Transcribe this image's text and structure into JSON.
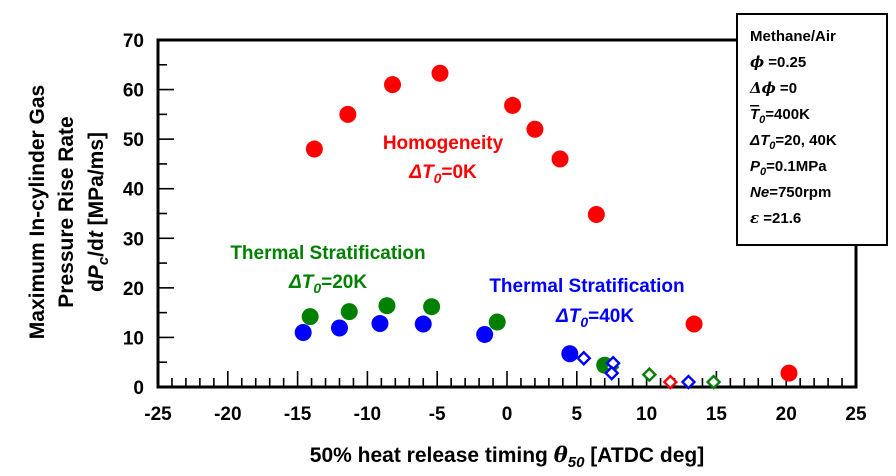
{
  "chart_data": {
    "type": "scatter",
    "xlabel_main": "50% heat release timing ",
    "xlabel_symbol": "θ",
    "xlabel_sub": "50",
    "xlabel_unit": " [ATDC deg]",
    "ylabel_line1": "Maximum In-cylinder Gas",
    "ylabel_line2": "Pressure Rise Rate",
    "ylabel_line3_d": "d",
    "ylabel_line3_p": "P",
    "ylabel_line3_c": "c",
    "ylabel_line3_slash": "/d",
    "ylabel_line3_t": "t",
    "ylabel_line3_unit": " [MPa/ms]",
    "xlim": [
      -25,
      25
    ],
    "ylim": [
      0,
      70
    ],
    "x_ticks": [
      "-25",
      "-20",
      "-15",
      "-10",
      "-5",
      "0",
      "5",
      "10",
      "15",
      "20",
      "25"
    ],
    "y_ticks": [
      "0",
      "10",
      "20",
      "30",
      "40",
      "50",
      "60",
      "70"
    ],
    "grid": false,
    "series": [
      {
        "color": "#ff0000",
        "marker": "circle",
        "points": [
          {
            "x": -13.8,
            "y": 48
          },
          {
            "x": -11.4,
            "y": 55
          },
          {
            "x": -8.2,
            "y": 61
          },
          {
            "x": -4.8,
            "y": 63.3
          },
          {
            "x": 0.4,
            "y": 56.8
          },
          {
            "x": 2.0,
            "y": 52
          },
          {
            "x": 3.8,
            "y": 46
          },
          {
            "x": 6.4,
            "y": 34.8
          },
          {
            "x": 13.4,
            "y": 12.7
          },
          {
            "x": 20.2,
            "y": 2.8
          }
        ]
      },
      {
        "color": "#008000",
        "marker": "circle",
        "points": [
          {
            "x": -14.1,
            "y": 14.2
          },
          {
            "x": -11.3,
            "y": 15.2
          },
          {
            "x": -8.6,
            "y": 16.4
          },
          {
            "x": -5.4,
            "y": 16.2
          },
          {
            "x": -0.7,
            "y": 13.1
          },
          {
            "x": 7.0,
            "y": 4.4
          }
        ]
      },
      {
        "color": "#0000ff",
        "marker": "circle",
        "points": [
          {
            "x": -14.6,
            "y": 11.0
          },
          {
            "x": -12.0,
            "y": 11.9
          },
          {
            "x": -9.1,
            "y": 12.8
          },
          {
            "x": -6.0,
            "y": 12.7
          },
          {
            "x": -1.6,
            "y": 10.6
          },
          {
            "x": 4.5,
            "y": 6.7
          }
        ]
      },
      {
        "color": "#ff0000",
        "marker": "diamond-open",
        "points": [
          {
            "x": 11.7,
            "y": 1.0
          }
        ]
      },
      {
        "color": "#008000",
        "marker": "diamond-open",
        "points": [
          {
            "x": 7.5,
            "y": 4.0
          },
          {
            "x": 10.2,
            "y": 2.5
          },
          {
            "x": 14.8,
            "y": 1.0
          }
        ]
      },
      {
        "color": "#0000ff",
        "marker": "diamond-open",
        "points": [
          {
            "x": 5.5,
            "y": 5.8
          },
          {
            "x": 7.6,
            "y": 4.8
          },
          {
            "x": 7.5,
            "y": 2.8
          },
          {
            "x": 13.0,
            "y": 1.0
          }
        ]
      }
    ],
    "annotations": {
      "homogeneity": {
        "text": "Homogeneity",
        "color": "#ff0000",
        "dt_value": "=0K"
      },
      "strat20": {
        "text": "Thermal Stratification",
        "color": "#008000",
        "dt_value": "=20K"
      },
      "strat40": {
        "text": "Thermal Stratification",
        "color": "#0000ff",
        "dt_value": "=40K"
      },
      "delta_T": "ΔT",
      "delta_T_sub": "0"
    },
    "conditions_box": {
      "title": "Methane/Air",
      "phi_sym": "ϕ",
      "phi_val": " =0.25",
      "dphi_sym": "Δϕ",
      "dphi_val": " =0",
      "tbar_sym": "T",
      "tbar_sub": "0",
      "tbar_val": "=400K",
      "dt_sym": "ΔT",
      "dt_sub": "0",
      "dt_val": "=20, 40K",
      "p_sym": "P",
      "p_sub": "0",
      "p_val": "=0.1MPa",
      "ne_sym": "Ne",
      "ne_val": "=750rpm",
      "eps_sym": "ε",
      "eps_val": " =21.6"
    }
  }
}
